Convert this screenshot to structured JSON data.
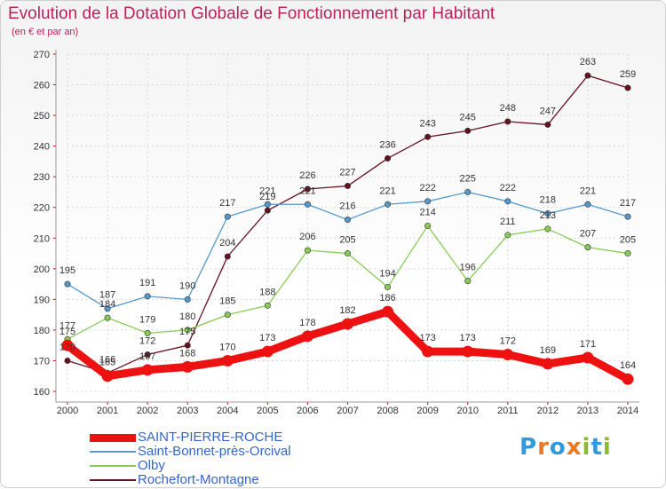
{
  "chart_data": {
    "type": "line",
    "title": "Evolution de la Dotation Globale de Fonctionnement par Habitant",
    "subtitle": "(en € et par an)",
    "x": [
      "2000",
      "2001",
      "2002",
      "2003",
      "2004",
      "2005",
      "2006",
      "2007",
      "2008",
      "2009",
      "2010",
      "2011",
      "2012",
      "2013",
      "2014"
    ],
    "ylim": [
      160,
      270
    ],
    "yticks": [
      160,
      170,
      180,
      190,
      200,
      210,
      220,
      230,
      240,
      250,
      260,
      270
    ],
    "grid": true,
    "legend_position": "bottom-left",
    "series": [
      {
        "name": "SAINT-PIERRE-ROCHE",
        "color": "#ee1111",
        "values": [
          175,
          165,
          167,
          168,
          170,
          173,
          178,
          182,
          186,
          173,
          173,
          172,
          169,
          171,
          164
        ]
      },
      {
        "name": "Saint-Bonnet-près-Orcival",
        "color": "#5599cc",
        "values": [
          195,
          187,
          191,
          190,
          217,
          221,
          221,
          216,
          221,
          222,
          225,
          222,
          218,
          221,
          217
        ]
      },
      {
        "name": "Olby",
        "color": "#88cc55",
        "values": [
          177,
          184,
          179,
          180,
          185,
          188,
          206,
          205,
          194,
          214,
          196,
          211,
          213,
          207,
          205
        ]
      },
      {
        "name": "Rochefort-Montagne",
        "color": "#661122",
        "values": [
          170,
          166,
          172,
          175,
          204,
          219,
          226,
          227,
          236,
          243,
          245,
          248,
          247,
          263,
          259
        ]
      }
    ]
  },
  "logo": {
    "letters": [
      "P",
      "r",
      "o",
      "x",
      "i",
      "t",
      "i"
    ],
    "colors": [
      "#3399dd",
      "#ee7722",
      "#3399dd",
      "#ee7722",
      "#88bb33",
      "#3399dd",
      "#88bb33"
    ]
  }
}
